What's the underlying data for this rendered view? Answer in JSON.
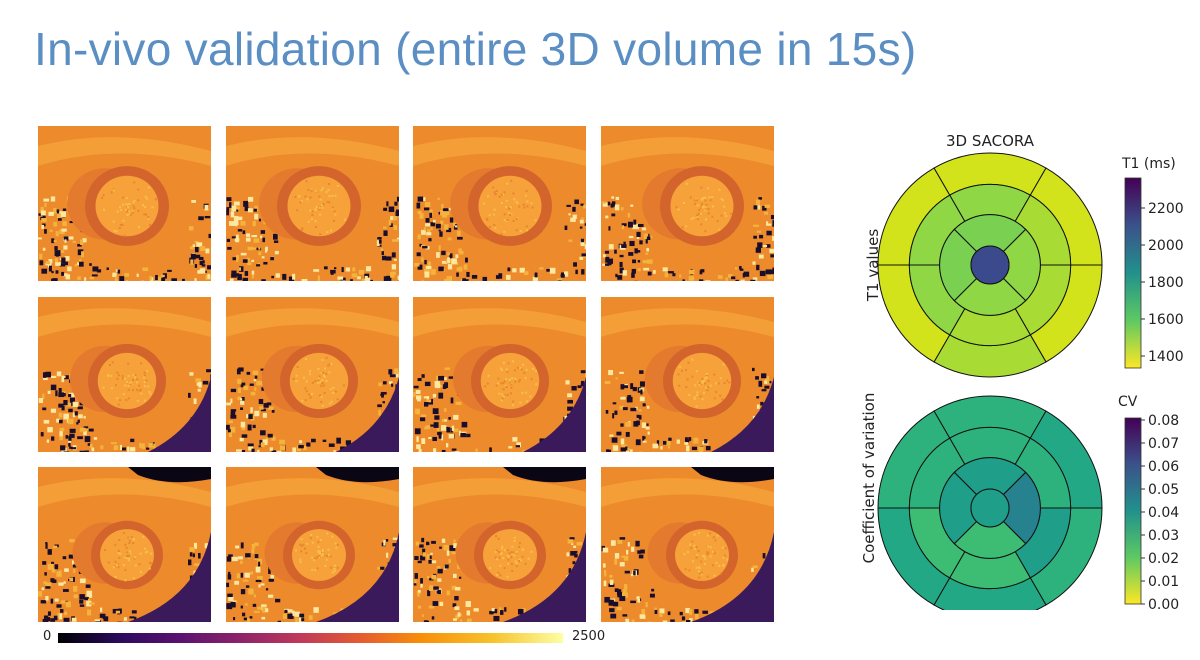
{
  "slide": {
    "title": "In-vivo validation (entire 3D volume in 15s)"
  },
  "slice_colorbar": {
    "min_label": "0",
    "max_label": "2500"
  },
  "bullseye_t1": {
    "title": "3D SACORA",
    "ylabel": "T1 values",
    "cbar_label": "T1 (ms)",
    "ticks": [
      "2200",
      "2000",
      "1800",
      "1600",
      "1400"
    ],
    "center_color": "#3b4a8c",
    "colors": [
      "#d2e21b",
      "#a8db34",
      "#8fd744",
      "#7ad151"
    ]
  },
  "bullseye_cv": {
    "ylabel": "Coefficient of variation",
    "cbar_label": "CV",
    "ticks": [
      "0.08",
      "0.07",
      "0.06",
      "0.05",
      "0.04",
      "0.03",
      "0.02",
      "0.01",
      "0.00"
    ],
    "colors": [
      "#2db27d",
      "#22a884",
      "#1f9e89",
      "#3dbc74",
      "#26828e"
    ]
  }
}
